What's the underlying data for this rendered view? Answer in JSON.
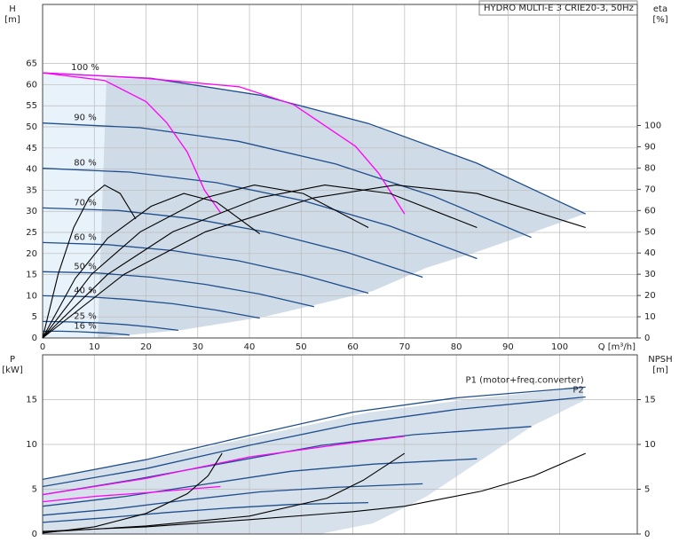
{
  "header": {
    "title": "HYDRO MULTI-E 3 CRIE20-3, 50Hz"
  },
  "chart_data": [
    {
      "type": "line",
      "x_label": "Q [m³/h]",
      "y_label": "H",
      "y_unit": "[m]",
      "y2_label": "eta",
      "y2_unit": "[%]",
      "xlim": [
        0,
        115
      ],
      "ylim": [
        0,
        79
      ],
      "y2lim": [
        0,
        157
      ],
      "xticks": [
        0,
        10,
        20,
        30,
        40,
        50,
        60,
        70,
        80,
        90,
        100
      ],
      "yticks": [
        0,
        5,
        10,
        15,
        20,
        25,
        30,
        35,
        40,
        45,
        50,
        55,
        60,
        65
      ],
      "y2ticks": [
        0,
        10,
        20,
        30,
        40,
        50,
        60,
        70,
        80,
        90,
        100
      ],
      "grid": true,
      "series": [
        {
          "name": "100 %",
          "color": "#1f4e8c",
          "x": [
            0,
            21,
            42,
            63,
            84,
            105
          ],
          "values": [
            62.8,
            61.5,
            57.5,
            50.8,
            41.4,
            29.4
          ]
        },
        {
          "name": "90 %",
          "color": "#1f4e8c",
          "x": [
            0,
            18.9,
            37.8,
            56.7,
            75.6,
            94.5
          ],
          "values": [
            50.9,
            49.8,
            46.6,
            41.2,
            33.6,
            23.8
          ]
        },
        {
          "name": "80 %",
          "color": "#1f4e8c",
          "x": [
            0,
            16.8,
            33.6,
            50.4,
            67.2,
            84
          ],
          "values": [
            40.2,
            39.3,
            36.8,
            32.5,
            26.5,
            18.8
          ]
        },
        {
          "name": "70 %",
          "color": "#1f4e8c",
          "x": [
            0,
            14.7,
            29.4,
            44.1,
            58.8,
            73.5
          ],
          "values": [
            30.8,
            30.2,
            28.2,
            24.9,
            20.3,
            14.4
          ]
        },
        {
          "name": "60 %",
          "color": "#1f4e8c",
          "x": [
            0,
            12.6,
            25.2,
            37.8,
            50.4,
            63
          ],
          "values": [
            22.6,
            22.1,
            20.7,
            18.3,
            14.9,
            10.6
          ]
        },
        {
          "name": "50 %",
          "color": "#1f4e8c",
          "x": [
            0,
            10.5,
            21,
            31.5,
            42,
            52.5
          ],
          "values": [
            15.7,
            15.4,
            14.4,
            12.7,
            10.4,
            7.4
          ]
        },
        {
          "name": "40 %",
          "color": "#1f4e8c",
          "x": [
            0,
            8.4,
            16.8,
            25.2,
            33.6,
            42
          ],
          "values": [
            10.0,
            9.8,
            9.1,
            8.1,
            6.6,
            4.7
          ]
        },
        {
          "name": "25 %",
          "color": "#1f4e8c",
          "x": [
            0,
            5.25,
            10.5,
            15.75,
            21,
            26.25
          ],
          "values": [
            3.9,
            3.8,
            3.6,
            3.2,
            2.6,
            1.8
          ]
        },
        {
          "name": "16 %",
          "color": "#1f4e8c",
          "x": [
            0,
            3.4,
            6.7,
            10.1,
            13.4,
            16.8
          ],
          "values": [
            1.6,
            1.6,
            1.5,
            1.3,
            1.1,
            0.7
          ]
        },
        {
          "color": "#ff00ff",
          "x": [
            0,
            12,
            20,
            24,
            28,
            31.3,
            34.4
          ],
          "values": [
            62.8,
            61,
            56,
            51,
            44,
            35,
            29.7
          ]
        },
        {
          "color": "#ff00ff",
          "x": [
            0,
            20,
            38,
            48.5,
            60.5,
            65,
            70
          ],
          "values": [
            62.8,
            61.5,
            59.5,
            55.3,
            45.4,
            39,
            29.4
          ]
        },
        {
          "color": "#000000",
          "axis": "y2",
          "x": [
            0,
            15.75,
            31.5,
            52.5,
            68.25,
            84,
            105
          ],
          "values": [
            0,
            30,
            50,
            66,
            72,
            68,
            52
          ]
        },
        {
          "color": "#000000",
          "axis": "y2",
          "x": [
            0,
            12.6,
            25.2,
            42,
            54.6,
            67.2,
            84
          ],
          "values": [
            0,
            30,
            50,
            66,
            72,
            68,
            52
          ]
        },
        {
          "color": "#000000",
          "axis": "y2",
          "x": [
            0,
            9.45,
            18.9,
            31.5,
            40.95,
            50.4,
            63
          ],
          "values": [
            0,
            30,
            50,
            66,
            72,
            68,
            52
          ]
        },
        {
          "color": "#000000",
          "axis": "y2",
          "x": [
            0,
            6.3,
            12.6,
            21,
            27.3,
            33.6,
            42
          ],
          "values": [
            0,
            28,
            47,
            62,
            68,
            64,
            49
          ]
        },
        {
          "color": "#000000",
          "axis": "y2",
          "x": [
            0,
            3,
            6,
            9,
            12,
            15,
            18
          ],
          "values": [
            0,
            30,
            52,
            66,
            72,
            68,
            56
          ]
        }
      ]
    },
    {
      "type": "line",
      "y_label": "P",
      "y_unit": "[kW]",
      "y2_label": "NPSH",
      "y2_unit": "[m]",
      "xlim": [
        0,
        115
      ],
      "ylim": [
        0,
        20
      ],
      "y2lim": [
        0,
        20
      ],
      "xticks": [
        0,
        10,
        20,
        30,
        40,
        50,
        60,
        70,
        80,
        90,
        100
      ],
      "yticks": [
        0,
        5,
        10,
        15
      ],
      "y2ticks": [
        0,
        5,
        10,
        15
      ],
      "grid": true,
      "series": [
        {
          "name": "P1 (motor+freq.converter)",
          "color": "#1f4e8c",
          "x": [
            0,
            20,
            40,
            60,
            80,
            105
          ],
          "values": [
            6.1,
            8.3,
            11.0,
            13.6,
            15.2,
            16.4
          ]
        },
        {
          "name": "P2",
          "color": "#1f4e8c",
          "x": [
            0,
            20,
            40,
            60,
            80,
            105
          ],
          "values": [
            5.3,
            7.3,
            9.9,
            12.3,
            13.9,
            15.3
          ]
        },
        {
          "color": "#1f4e8c",
          "x": [
            0,
            18,
            36,
            54,
            72,
            94.5
          ],
          "values": [
            4.4,
            6.1,
            8.0,
            9.9,
            11.1,
            12.0
          ]
        },
        {
          "color": "#1f4e8c",
          "x": [
            0,
            16,
            32,
            48,
            64,
            84
          ],
          "values": [
            3.1,
            4.2,
            5.6,
            7.0,
            7.8,
            8.4
          ]
        },
        {
          "color": "#1f4e8c",
          "x": [
            0,
            14,
            28,
            42,
            56,
            73.5
          ],
          "values": [
            2.1,
            2.8,
            3.8,
            4.7,
            5.2,
            5.6
          ]
        },
        {
          "color": "#1f4e8c",
          "x": [
            0,
            12,
            24,
            36,
            48,
            63
          ],
          "values": [
            1.3,
            1.8,
            2.4,
            2.9,
            3.3,
            3.5
          ]
        },
        {
          "color": "#ff00ff",
          "x": [
            0,
            10,
            20,
            30,
            34.4
          ],
          "values": [
            3.6,
            4.2,
            4.6,
            5.1,
            5.3
          ]
        },
        {
          "color": "#ff00ff",
          "x": [
            0,
            20,
            40,
            60,
            70
          ],
          "values": [
            4.4,
            6.2,
            8.6,
            10.2,
            10.9
          ]
        },
        {
          "color": "#000000",
          "axis": "y2",
          "x": [
            0,
            20,
            40,
            60,
            70,
            85,
            95,
            105
          ],
          "values": [
            0.3,
            0.8,
            1.6,
            2.5,
            3.1,
            4.8,
            6.5,
            9.0
          ]
        },
        {
          "color": "#000000",
          "axis": "y2",
          "x": [
            0,
            20,
            40,
            55,
            62,
            70
          ],
          "values": [
            0.2,
            0.9,
            2.0,
            4.0,
            6.0,
            9.0
          ]
        },
        {
          "color": "#000000",
          "axis": "y2",
          "x": [
            0,
            10,
            20,
            28,
            32,
            34.7
          ],
          "values": [
            0.1,
            0.8,
            2.3,
            4.5,
            6.5,
            9.0
          ]
        }
      ]
    }
  ]
}
